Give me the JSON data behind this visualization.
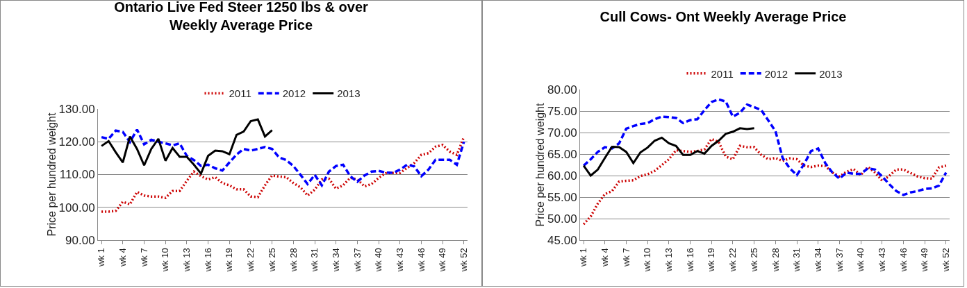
{
  "chart_data": [
    {
      "type": "line",
      "title": "Ontario Live Fed Steer 1250 lbs & over\nWeekly Average Price",
      "ylabel": "Price per hundred weight",
      "categories": [
        "wk 1",
        null,
        null,
        "wk 4",
        null,
        null,
        "wk 7",
        null,
        null,
        "wk 10",
        null,
        null,
        "wk 13",
        null,
        null,
        "wk 16",
        null,
        null,
        "wk 19",
        null,
        null,
        "wk 22",
        null,
        null,
        "wk 25",
        null,
        null,
        "wk 28",
        null,
        null,
        "wk 31",
        null,
        null,
        "wk 34",
        null,
        null,
        "wk 37",
        null,
        null,
        "wk 40",
        null,
        null,
        "wk 43",
        null,
        null,
        "wk 46",
        null,
        null,
        "wk 49",
        null,
        null,
        "wk 52"
      ],
      "series": [
        {
          "name": "2011",
          "color": "#cc0000",
          "line_style": "dotted",
          "values": [
            98.7,
            98.7,
            98.9,
            101.7,
            100.9,
            104.7,
            103.6,
            103.3,
            103.3,
            102.9,
            105,
            105,
            108.1,
            110.9,
            109.5,
            108.5,
            109.2,
            107.4,
            106.7,
            105.5,
            105.5,
            103.3,
            103.1,
            106.7,
            109.7,
            109.4,
            109.2,
            107.4,
            106.1,
            103.6,
            105.4,
            108.5,
            108.7,
            105.7,
            106.7,
            109,
            108.5,
            106.4,
            107.1,
            109,
            110.4,
            110.5,
            110.5,
            112,
            113.5,
            116,
            116.5,
            118.5,
            119,
            117,
            116,
            121.5
          ]
        },
        {
          "name": "2012",
          "color": "#0000ff",
          "line_style": "dashed",
          "values": [
            121.4,
            120.9,
            123.4,
            123,
            119.9,
            123.7,
            119.2,
            120.6,
            120,
            119.5,
            118.9,
            119.5,
            115.7,
            114.4,
            112.6,
            113,
            111.9,
            111.2,
            113.7,
            116.1,
            117.8,
            117.3,
            117.8,
            118.4,
            117.8,
            115.2,
            114.4,
            112.6,
            109.9,
            107.1,
            109.9,
            106.7,
            110.9,
            112.6,
            113,
            109.5,
            107.8,
            109.7,
            110.9,
            111.1,
            110.6,
            110.5,
            111.5,
            113,
            112.5,
            109.5,
            111.5,
            114.5,
            114.5,
            114.5,
            113,
            120
          ]
        },
        {
          "name": "2013",
          "color": "#000000",
          "line_style": "solid",
          "values": [
            118.7,
            120.2,
            116.8,
            113.7,
            121.6,
            117.8,
            112.8,
            117.8,
            120.9,
            114.2,
            118.1,
            115.4,
            115.4,
            113,
            110.3,
            115.7,
            117.3,
            117.1,
            116.2,
            122.1,
            123.1,
            126.3,
            126.8,
            121.6,
            123.5,
            null,
            null,
            null,
            null,
            null,
            null,
            null,
            null,
            null,
            null,
            null,
            null,
            null,
            null,
            null,
            null,
            null,
            null,
            null,
            null,
            null,
            null,
            null,
            null,
            null,
            null,
            null
          ]
        }
      ],
      "ylim": [
        90,
        130
      ],
      "yticks": [
        {
          "value": 90,
          "label": "90.00"
        },
        {
          "value": 100,
          "label": "100.00"
        },
        {
          "value": 110,
          "label": "110.00"
        },
        {
          "value": 120,
          "label": "120.00"
        },
        {
          "value": 130,
          "label": "130.00"
        }
      ],
      "grid": "y",
      "legend": "top",
      "marker": "none"
    },
    {
      "type": "line",
      "title": "Cull Cows- Ont Weekly Average Price",
      "ylabel": "Price per hundred weight",
      "categories": [
        "wk 1",
        null,
        null,
        "wk 4",
        null,
        null,
        "wk 7",
        null,
        null,
        "wk 10",
        null,
        null,
        "wk 13",
        null,
        null,
        "wk 16",
        null,
        null,
        "wk 19",
        null,
        null,
        "wk 22",
        null,
        null,
        "wk 25",
        null,
        null,
        "wk 28",
        null,
        null,
        "wk 31",
        null,
        null,
        "wk 34",
        null,
        null,
        "wk 37",
        null,
        null,
        "wk 40",
        null,
        null,
        "wk 43",
        null,
        null,
        "wk 46",
        null,
        null,
        "wk 49",
        null,
        null,
        "wk 52"
      ],
      "series": [
        {
          "name": "2011",
          "color": "#cc0000",
          "line_style": "dotted",
          "values": [
            48.7,
            50.5,
            53.5,
            55.7,
            56.4,
            58.6,
            58.8,
            58.9,
            59.9,
            60.3,
            61.1,
            62.4,
            63.8,
            65.9,
            65.7,
            65.5,
            65.7,
            66.1,
            68.5,
            67.8,
            64.4,
            63.8,
            66.9,
            66.6,
            66.6,
            64.8,
            63.8,
            64.1,
            63.4,
            64,
            63.8,
            62.3,
            62,
            62.3,
            62.2,
            60.7,
            59.8,
            60.9,
            61.5,
            60.1,
            62,
            60.7,
            58.8,
            59.9,
            61.4,
            61.4,
            60.6,
            59.8,
            59.4,
            59.3,
            61.9,
            62.3
          ]
        },
        {
          "name": "2012",
          "color": "#0000ff",
          "line_style": "dashed",
          "values": [
            62.3,
            63.8,
            65.5,
            66.6,
            66.3,
            67.5,
            70.9,
            71.5,
            72,
            72.2,
            73.1,
            73.7,
            73.6,
            73.4,
            72.2,
            72.9,
            73.1,
            75.2,
            77.1,
            77.7,
            77.2,
            73.7,
            74.6,
            76.5,
            75.9,
            75.2,
            72.8,
            70.3,
            64.1,
            61.7,
            60.1,
            62.6,
            65.7,
            66.3,
            62.9,
            60.7,
            59.3,
            60.7,
            60.4,
            60.4,
            61.7,
            61.4,
            59.8,
            58,
            56.4,
            55.5,
            56.1,
            56.4,
            56.9,
            57,
            57.7,
            60.7
          ]
        },
        {
          "name": "2013",
          "color": "#000000",
          "line_style": "solid",
          "values": [
            62.3,
            60,
            61.4,
            64.1,
            66.7,
            66.6,
            65.5,
            62.9,
            65.4,
            66.5,
            68.1,
            68.8,
            67.5,
            66.9,
            64.8,
            64.8,
            65.7,
            65.1,
            66.9,
            68.1,
            69.7,
            70.2,
            71,
            70.8,
            71,
            null,
            null,
            null,
            null,
            null,
            null,
            null,
            null,
            null,
            null,
            null,
            null,
            null,
            null,
            null,
            null,
            null,
            null,
            null,
            null,
            null,
            null,
            null,
            null,
            null,
            null,
            null
          ]
        }
      ],
      "ylim": [
        45,
        80
      ],
      "yticks": [
        {
          "value": 45,
          "label": "45.00"
        },
        {
          "value": 50,
          "label": "50.00"
        },
        {
          "value": 55,
          "label": "55.00"
        },
        {
          "value": 60,
          "label": "60.00"
        },
        {
          "value": 65,
          "label": "65.00"
        },
        {
          "value": 70,
          "label": "70.00"
        },
        {
          "value": 75,
          "label": "75.00"
        },
        {
          "value": 80,
          "label": "80.00"
        }
      ],
      "grid": "y",
      "legend": "top",
      "marker": "none"
    }
  ]
}
